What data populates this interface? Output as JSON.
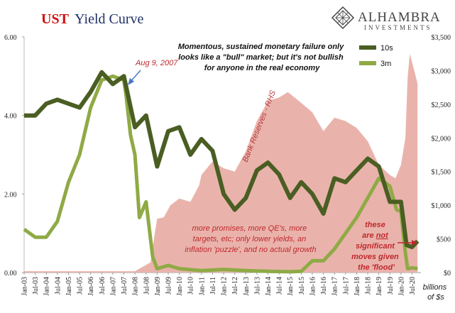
{
  "chart_data": {
    "type": "line",
    "title_part1": "UST",
    "title_part2": "Yield Curve",
    "logo": {
      "name": "ALHAMBRA",
      "sub": "INVESTMENTS"
    },
    "colors": {
      "s10": "#4a5e23",
      "s3m": "#8faa45",
      "reserves": "#e9b3ac",
      "title_red": "#d01010",
      "title_blue": "#1f2f66",
      "annotation": "#c0282c",
      "arrow_blue": "#4a78c0"
    },
    "left_axis": {
      "min": 0,
      "max": 6,
      "ticks": [
        "0.00",
        "2.00",
        "4.00",
        "6.00"
      ]
    },
    "right_axis": {
      "min": 0,
      "max": 3500,
      "ticks": [
        "$0",
        "$500",
        "$1,000",
        "$1,500",
        "$2,000",
        "$2,500",
        "$3,000",
        "$3,500"
      ],
      "unit_line1": "billions",
      "unit_line2": "of $s"
    },
    "x_labels": [
      "Jan-03",
      "Jul-03",
      "Jan-04",
      "Jul-04",
      "Jan-05",
      "Jul-05",
      "Jan-06",
      "Jul-06",
      "Jan-07",
      "Jul-07",
      "Jan-08",
      "Jul-08",
      "Jan-09",
      "Jul-09",
      "Jan-10",
      "Jul-10",
      "Jan-11",
      "Jul-11",
      "Jan-12",
      "Jul-12",
      "Jan-13",
      "Jul-13",
      "Jan-14",
      "Jul-14",
      "Jan-15",
      "Jul-15",
      "Jan-16",
      "Jul-16",
      "Jan-17",
      "Jul-17",
      "Jan-18",
      "Jul-18",
      "Jan-19",
      "Jul-19",
      "Jan-20",
      "Jul-20"
    ],
    "series": [
      {
        "key": "s10",
        "name": "10s",
        "axis": "left",
        "x": [
          2003.0,
          2003.5,
          2004.0,
          2004.5,
          2005.0,
          2005.5,
          2006.0,
          2006.5,
          2007.0,
          2007.5,
          2008.0,
          2008.5,
          2009.0,
          2009.5,
          2010.0,
          2010.5,
          2011.0,
          2011.5,
          2012.0,
          2012.5,
          2013.0,
          2013.5,
          2014.0,
          2014.5,
          2015.0,
          2015.5,
          2016.0,
          2016.5,
          2017.0,
          2017.5,
          2018.0,
          2018.5,
          2019.0,
          2019.5,
          2020.0,
          2020.25,
          2020.5,
          2020.75
        ],
        "values": [
          4.0,
          4.0,
          4.3,
          4.4,
          4.3,
          4.2,
          4.6,
          5.1,
          4.8,
          5.0,
          3.7,
          4.0,
          2.7,
          3.6,
          3.7,
          3.0,
          3.4,
          3.1,
          2.0,
          1.6,
          1.9,
          2.6,
          2.8,
          2.5,
          1.9,
          2.3,
          2.0,
          1.5,
          2.4,
          2.3,
          2.6,
          2.9,
          2.7,
          1.8,
          1.8,
          0.7,
          0.65,
          0.8
        ]
      },
      {
        "key": "s3m",
        "name": "3m",
        "axis": "left",
        "x": [
          2003.0,
          2003.5,
          2004.0,
          2004.5,
          2005.0,
          2005.5,
          2006.0,
          2006.5,
          2007.0,
          2007.5,
          2007.6,
          2007.8,
          2008.0,
          2008.2,
          2008.5,
          2008.8,
          2009.0,
          2009.5,
          2010.0,
          2011.0,
          2012.0,
          2013.0,
          2014.0,
          2015.0,
          2015.5,
          2016.0,
          2016.5,
          2017.0,
          2017.5,
          2018.0,
          2018.5,
          2019.0,
          2019.5,
          2019.8,
          2020.0,
          2020.2,
          2020.3,
          2020.5,
          2020.75
        ],
        "values": [
          1.1,
          0.9,
          0.9,
          1.3,
          2.3,
          3.0,
          4.2,
          4.9,
          5.0,
          4.9,
          4.5,
          3.5,
          3.0,
          1.4,
          1.8,
          0.4,
          0.1,
          0.18,
          0.1,
          0.05,
          0.08,
          0.05,
          0.03,
          0.02,
          0.03,
          0.3,
          0.3,
          0.6,
          1.0,
          1.4,
          1.9,
          2.4,
          2.2,
          1.6,
          1.55,
          0.5,
          0.1,
          0.12,
          0.1
        ]
      },
      {
        "key": "reserves",
        "name": "Bank Reserves - RHS",
        "axis": "right",
        "x": [
          2003.0,
          2008.0,
          2008.7,
          2008.9,
          2009.0,
          2009.3,
          2009.6,
          2010.0,
          2010.5,
          2010.9,
          2011.0,
          2011.5,
          2012.0,
          2012.5,
          2013.0,
          2013.5,
          2014.0,
          2014.5,
          2014.9,
          2015.5,
          2016.0,
          2016.5,
          2017.0,
          2017.5,
          2018.0,
          2018.5,
          2019.0,
          2019.5,
          2019.75,
          2020.0,
          2020.2,
          2020.3,
          2020.4,
          2020.6,
          2020.75
        ],
        "values": [
          20,
          20,
          150,
          600,
          800,
          820,
          1000,
          1100,
          1050,
          1300,
          1450,
          1650,
          1550,
          1500,
          1800,
          2250,
          2550,
          2600,
          2680,
          2520,
          2380,
          2100,
          2300,
          2250,
          2150,
          1950,
          1600,
          1450,
          1400,
          1600,
          2000,
          2900,
          3250,
          3000,
          2800
        ]
      }
    ],
    "annotations": {
      "date": "Aug 9, 2007",
      "box_line1": "Momentous, sustained monetary failure only",
      "box_line2": "looks like a \"bull\" market; but it's not bullish",
      "box_line3": "for anyone in the real economy",
      "reserves_label": "Bank Reserves - RHS",
      "promise_line1": "more promises, more QE's, more",
      "promise_line2": "targets, etc; only lower yields, an",
      "promise_line3": "inflation 'puzzle', and no actual growth",
      "flood_line1": "these",
      "flood_line2a": "are ",
      "flood_line2b": "not",
      "flood_line3": "significant",
      "flood_line4": "moves given",
      "flood_line5": "the 'flood'"
    }
  }
}
